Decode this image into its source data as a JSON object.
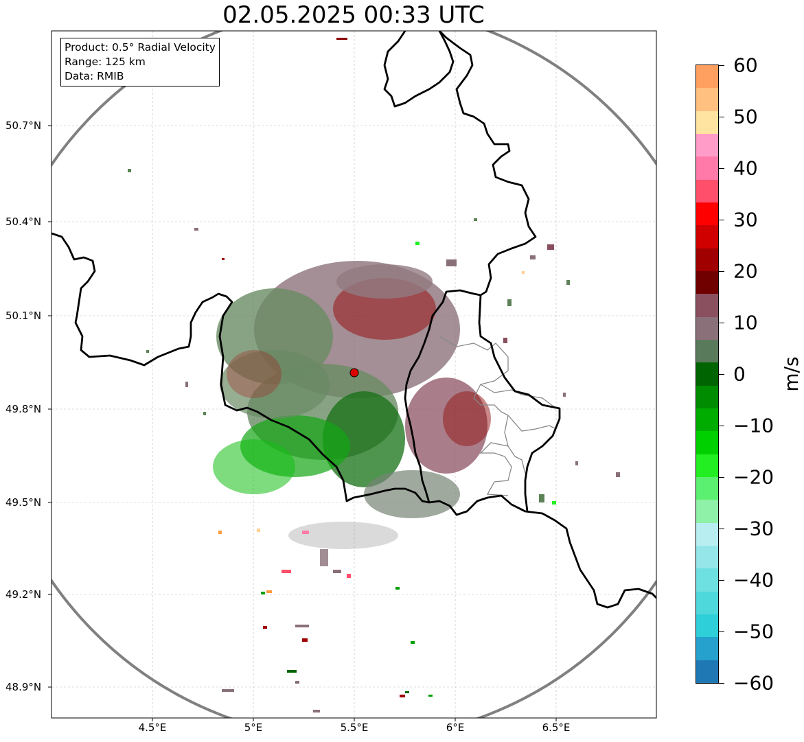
{
  "title": "02.05.2025 00:33 UTC",
  "info": {
    "product": "Product: 0.5° Radial Velocity",
    "range": "Range: 125 km",
    "data": "Data: RMIB"
  },
  "lat_ticks": [
    "50.7°N",
    "50.4°N",
    "50.1°N",
    "49.8°N",
    "49.5°N",
    "49.2°N",
    "48.9°N"
  ],
  "lon_ticks": [
    "4.5°E",
    "5°E",
    "5.5°E",
    "6°E",
    "6.5°E"
  ],
  "colorbar": {
    "unit": "m/s",
    "ticks": [
      "60",
      "50",
      "40",
      "30",
      "20",
      "10",
      "0",
      "−10",
      "−20",
      "−30",
      "−40",
      "−50",
      "−60"
    ],
    "colors": [
      "#1f77b4",
      "#26a0cc",
      "#2ecfd8",
      "#4fd8dc",
      "#6fe0e2",
      "#95e6e8",
      "#b8eef0",
      "#8ff0a8",
      "#5cf070",
      "#22ee22",
      "#00d000",
      "#00ac00",
      "#008c00",
      "#006400",
      "#5a7a5c",
      "#8a7078",
      "#8a5060",
      "#700000",
      "#a00000",
      "#d00000",
      "#ff0000",
      "#ff4f6a",
      "#ff7aa8",
      "#ff9cc8",
      "#ffe3a0",
      "#ffc080",
      "#ffa060"
    ]
  },
  "colors": {
    "border": "#000000",
    "region_lines": "#888888",
    "range_circle": "#808080",
    "radar_site": "#dd0000"
  }
}
